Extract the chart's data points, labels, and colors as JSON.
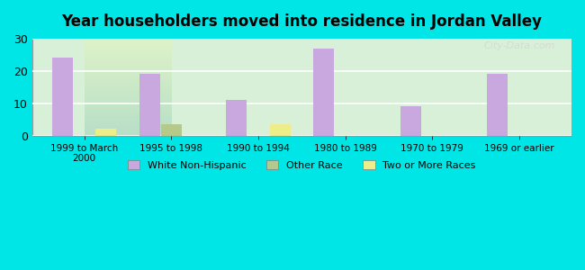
{
  "title": "Year householders moved into residence in Jordan Valley",
  "categories": [
    "1999 to March\n2000",
    "1995 to 1998",
    "1990 to 1994",
    "1980 to 1989",
    "1970 to 1979",
    "1969 or earlier"
  ],
  "series": {
    "White Non-Hispanic": [
      24,
      19,
      11,
      27,
      9,
      19
    ],
    "Other Race": [
      0,
      3.5,
      0,
      0,
      0,
      0
    ],
    "Two or More Races": [
      2,
      0,
      3.5,
      0,
      0,
      0
    ]
  },
  "colors": {
    "White Non-Hispanic": "#c9a8e0",
    "Other Race": "#b5c98a",
    "Two or More Races": "#eded8a"
  },
  "ylim": [
    0,
    30
  ],
  "yticks": [
    0,
    10,
    20,
    30
  ],
  "background_color": "#00e5e5",
  "plot_bg_start": "#e8f5e9",
  "plot_bg_end": "#f0f8ff",
  "bar_width": 0.25,
  "watermark": "City-Data.com"
}
